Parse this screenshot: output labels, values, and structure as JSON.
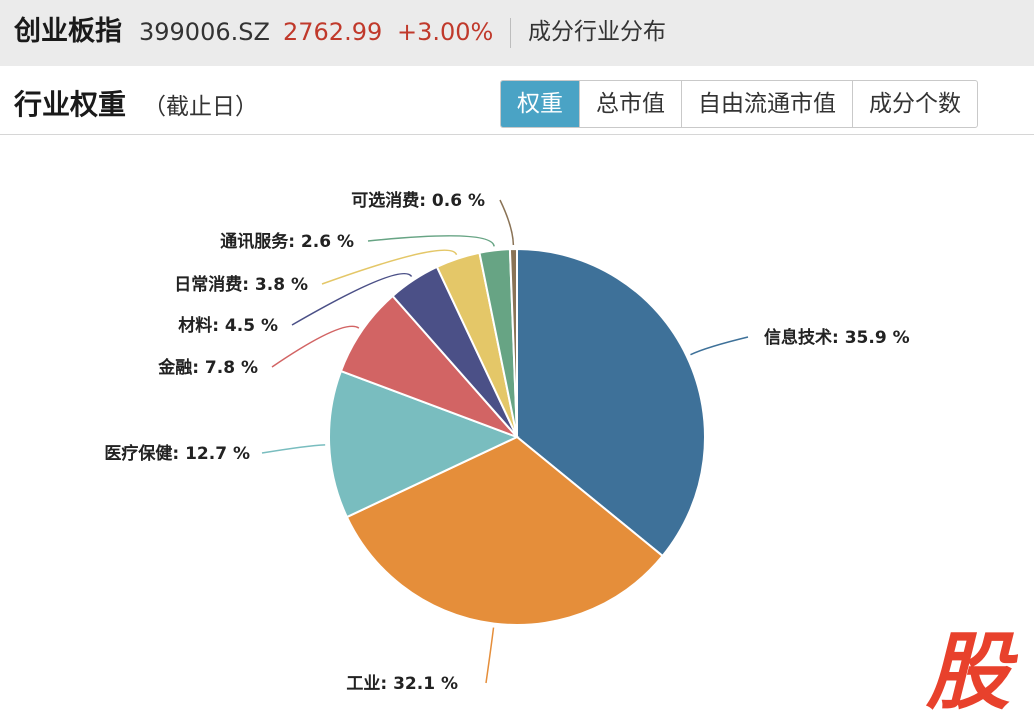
{
  "header": {
    "index_name": "创业板指",
    "index_code": "399006.SZ",
    "price": "2762.99",
    "change": "+3.00%",
    "link": "成分行业分布"
  },
  "section": {
    "title": "行业权重",
    "subtitle": "（截止日）"
  },
  "tabs": [
    "权重",
    "总市值",
    "自由流通市值",
    "成分个数"
  ],
  "active_tab": 0,
  "colors": {
    "accent": "#4aa3c5",
    "up": "#c0392b",
    "brand": "#e8412c"
  },
  "brand_glyph": "股",
  "chart_data": {
    "type": "pie",
    "label_format": "{name}: {value} %",
    "series": [
      {
        "values": [
          {
            "name": "信息技术",
            "value": 35.9,
            "color": "#3e7199"
          },
          {
            "name": "工业",
            "value": 32.1,
            "color": "#e58e3a"
          },
          {
            "name": "医疗保健",
            "value": 12.7,
            "color": "#79bdbf"
          },
          {
            "name": "金融",
            "value": 7.8,
            "color": "#d26464"
          },
          {
            "name": "材料",
            "value": 4.5,
            "color": "#4b5087"
          },
          {
            "name": "日常消费",
            "value": 3.8,
            "color": "#e4c768"
          },
          {
            "name": "通讯服务",
            "value": 2.6,
            "color": "#67a484"
          },
          {
            "name": "可选消费",
            "value": 0.6,
            "color": "#8a7356"
          }
        ]
      }
    ]
  }
}
